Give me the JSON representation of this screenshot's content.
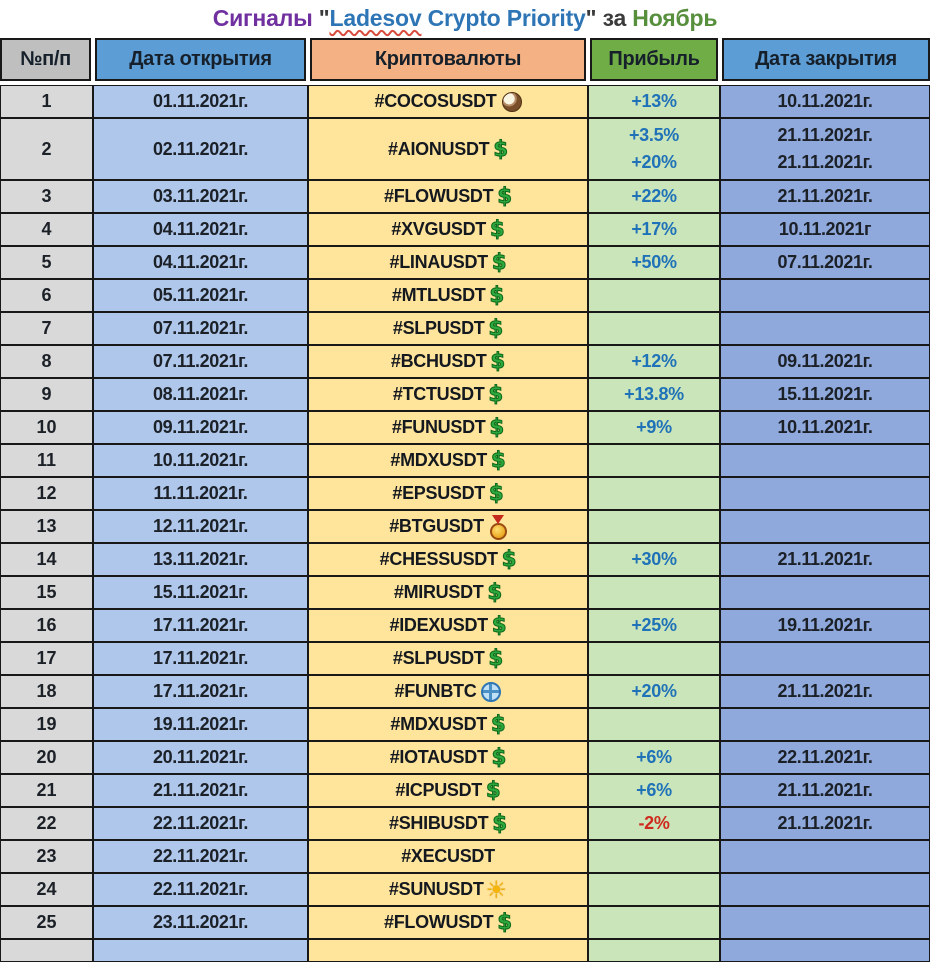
{
  "title": {
    "signals_word": "Сигналы",
    "opening_quote": "\"",
    "brand_first_word": "Ladesov",
    "brand_rest": " Crypto Priority",
    "closing_quote": "\"",
    "connector_word": "за",
    "month_word": "Ноябрь"
  },
  "colors": {
    "header_gray": "#BFBFBF",
    "header_blue": "#5D9DD5",
    "header_orange": "#F4B183",
    "header_green": "#70AD47",
    "body_gray": "#D9D9D9",
    "body_blue_light": "#AFC7EB",
    "body_yellow": "#FFE49B",
    "body_green": "#CBE5BA",
    "body_blue_dark": "#8FA9DC",
    "border_dark": "#181818",
    "profit_positive": "#1F72B8",
    "profit_negative": "#CE2A1D",
    "text_dark": "#1C2128",
    "title_purple": "#7030A0",
    "title_blue": "#2E75B6",
    "title_green": "#578F3D",
    "title_dark": "#3B3B3B",
    "squiggle_red": "#D84C3E"
  },
  "table": {
    "headers": [
      "№п/п",
      "Дата открытия",
      "Криптовалюты",
      "Прибыль",
      "Дата закрытия"
    ],
    "rows": [
      {
        "num": "1",
        "open_date": "01.11.2021г.",
        "ticker": "#COCOSUSDT",
        "icon": "coconut-icon",
        "profits": [
          "+13%"
        ],
        "close_dates": [
          "10.11.2021г."
        ]
      },
      {
        "num": "2",
        "open_date": "02.11.2021г.",
        "ticker": "#AIONUSDT",
        "icon": "dollar-icon",
        "profits": [
          "+3.5%",
          "+20%"
        ],
        "close_dates": [
          "21.11.2021г.",
          "21.11.2021г."
        ]
      },
      {
        "num": "3",
        "open_date": "03.11.2021г.",
        "ticker": "#FLOWUSDT",
        "icon": "dollar-icon",
        "profits": [
          "+22%"
        ],
        "close_dates": [
          "21.11.2021г."
        ]
      },
      {
        "num": "4",
        "open_date": "04.11.2021г.",
        "ticker": "#XVGUSDT",
        "icon": "dollar-icon",
        "profits": [
          "+17%"
        ],
        "close_dates": [
          "10.11.2021г"
        ]
      },
      {
        "num": "5",
        "open_date": "04.11.2021г.",
        "ticker": "#LINAUSDT",
        "icon": "dollar-icon",
        "profits": [
          "+50%"
        ],
        "close_dates": [
          "07.11.2021г."
        ]
      },
      {
        "num": "6",
        "open_date": "05.11.2021г.",
        "ticker": "#MTLUSDT",
        "icon": "dollar-icon",
        "profits": [],
        "close_dates": []
      },
      {
        "num": "7",
        "open_date": "07.11.2021г.",
        "ticker": "#SLPUSDT",
        "icon": "dollar-icon",
        "profits": [],
        "close_dates": []
      },
      {
        "num": "8",
        "open_date": "07.11.2021г.",
        "ticker": "#BCHUSDT",
        "icon": "dollar-icon",
        "profits": [
          "+12%"
        ],
        "close_dates": [
          "09.11.2021г."
        ]
      },
      {
        "num": "9",
        "open_date": "08.11.2021г.",
        "ticker": "#TCTUSDT",
        "icon": "dollar-icon",
        "profits": [
          "+13.8%"
        ],
        "close_dates": [
          "15.11.2021г."
        ]
      },
      {
        "num": "10",
        "open_date": "09.11.2021г.",
        "ticker": "#FUNUSDT",
        "icon": "dollar-icon",
        "profits": [
          "+9%"
        ],
        "close_dates": [
          "10.11.2021г."
        ]
      },
      {
        "num": "11",
        "open_date": "10.11.2021г.",
        "ticker": "#MDXUSDT",
        "icon": "dollar-icon",
        "profits": [],
        "close_dates": []
      },
      {
        "num": "12",
        "open_date": "11.11.2021г.",
        "ticker": "#EPSUSDT",
        "icon": "dollar-icon",
        "profits": [],
        "close_dates": []
      },
      {
        "num": "13",
        "open_date": "12.11.2021г.",
        "ticker": "#BTGUSDT",
        "icon": "medal-icon",
        "profits": [],
        "close_dates": []
      },
      {
        "num": "14",
        "open_date": "13.11.2021г.",
        "ticker": "#CHESSUSDT",
        "icon": "dollar-icon",
        "profits": [
          "+30%"
        ],
        "close_dates": [
          "21.11.2021г."
        ]
      },
      {
        "num": "15",
        "open_date": "15.11.2021г.",
        "ticker": "#MIRUSDT",
        "icon": "dollar-icon",
        "profits": [],
        "close_dates": []
      },
      {
        "num": "16",
        "open_date": "17.11.2021г.",
        "ticker": "#IDEXUSDT",
        "icon": "dollar-icon",
        "profits": [
          "+25%"
        ],
        "close_dates": [
          "19.11.2021г."
        ]
      },
      {
        "num": "17",
        "open_date": "17.11.2021г.",
        "ticker": "#SLPUSDT",
        "icon": "dollar-icon",
        "profits": [],
        "close_dates": []
      },
      {
        "num": "18",
        "open_date": "17.11.2021г.",
        "ticker": "#FUNBTC",
        "icon": "globe-icon",
        "profits": [
          "+20%"
        ],
        "close_dates": [
          "21.11.2021г."
        ]
      },
      {
        "num": "19",
        "open_date": "19.11.2021г.",
        "ticker": "#MDXUSDT",
        "icon": "dollar-icon",
        "profits": [],
        "close_dates": []
      },
      {
        "num": "20",
        "open_date": "20.11.2021г.",
        "ticker": "#IOTAUSDT",
        "icon": "dollar-icon",
        "profits": [
          "+6%"
        ],
        "close_dates": [
          "22.11.2021г."
        ]
      },
      {
        "num": "21",
        "open_date": "21.11.2021г.",
        "ticker": "#ICPUSDT",
        "icon": "dollar-icon",
        "profits": [
          "+6%"
        ],
        "close_dates": [
          "21.11.2021г."
        ]
      },
      {
        "num": "22",
        "open_date": "22.11.2021г.",
        "ticker": "#SHIBUSDT",
        "icon": "dollar-icon",
        "profits": [
          "-2%"
        ],
        "close_dates": [
          "21.11.2021г."
        ]
      },
      {
        "num": "23",
        "open_date": "22.11.2021г.",
        "ticker": "#XECUSDT",
        "icon": null,
        "profits": [],
        "close_dates": []
      },
      {
        "num": "24",
        "open_date": "22.11.2021г.",
        "ticker": "#SUNUSDT",
        "icon": "sun-icon",
        "profits": [],
        "close_dates": []
      },
      {
        "num": "25",
        "open_date": "23.11.2021г.",
        "ticker": "#FLOWUSDT",
        "icon": "dollar-icon",
        "profits": [],
        "close_dates": []
      },
      {
        "num": "",
        "open_date": "",
        "ticker": "",
        "icon": null,
        "profits": [],
        "close_dates": []
      }
    ]
  }
}
